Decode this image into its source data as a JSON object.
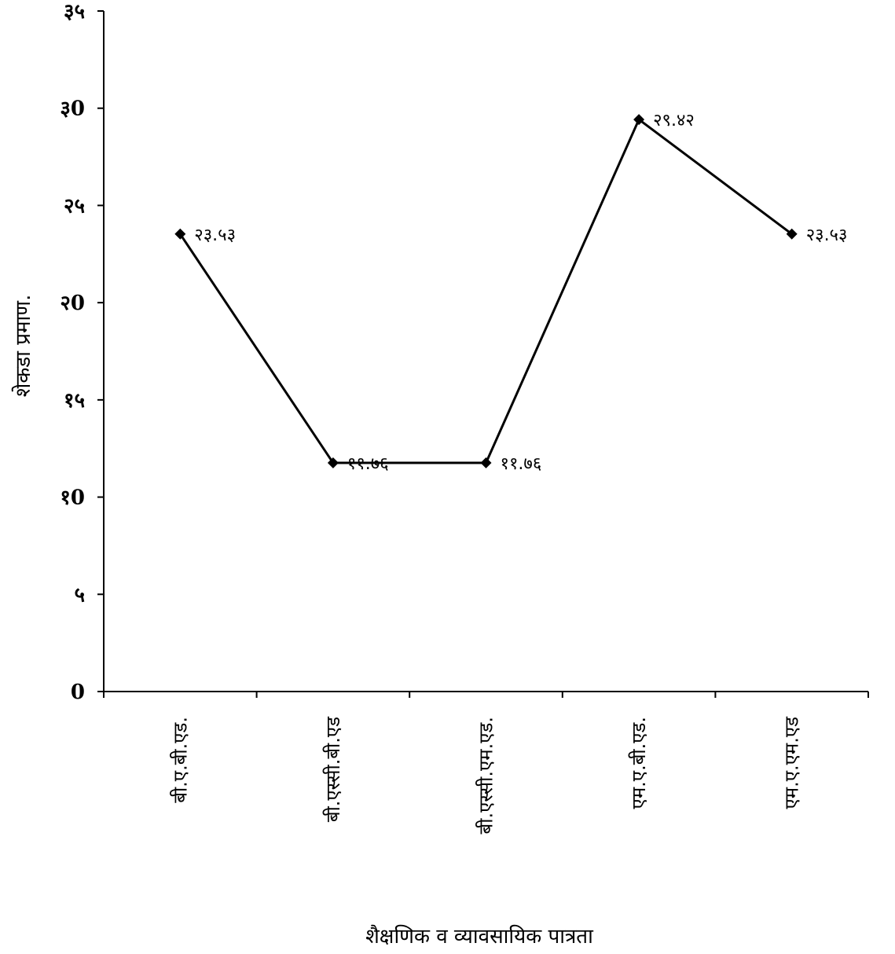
{
  "chart_data": {
    "type": "line",
    "title": "",
    "xlabel": "शैक्षणिक व व्यावसायिक पात्रता",
    "ylabel": "शेकडा प्रमाण.",
    "ylim": [
      0,
      35
    ],
    "y_ticks": [
      {
        "value": 0,
        "label": "0"
      },
      {
        "value": 5,
        "label": "५"
      },
      {
        "value": 10,
        "label": "१0"
      },
      {
        "value": 15,
        "label": "१५"
      },
      {
        "value": 20,
        "label": "२0"
      },
      {
        "value": 25,
        "label": "२५"
      },
      {
        "value": 30,
        "label": "३0"
      },
      {
        "value": 35,
        "label": "३५"
      }
    ],
    "categories": [
      "बी.ए.बी.एड.",
      "बी.एस्सी.बी.एड",
      "बी.एस्सी.एम.एड.",
      "एम.ए.बी.एड.",
      "एम.ए.एम.एड"
    ],
    "values": [
      23.53,
      11.76,
      11.76,
      29.42,
      23.53
    ],
    "data_labels": [
      "२३.५३",
      "११.७६",
      "११.७६",
      "२९.४२",
      "२३.५३"
    ],
    "grid": false,
    "line_color": "#000000",
    "marker": "diamond"
  }
}
